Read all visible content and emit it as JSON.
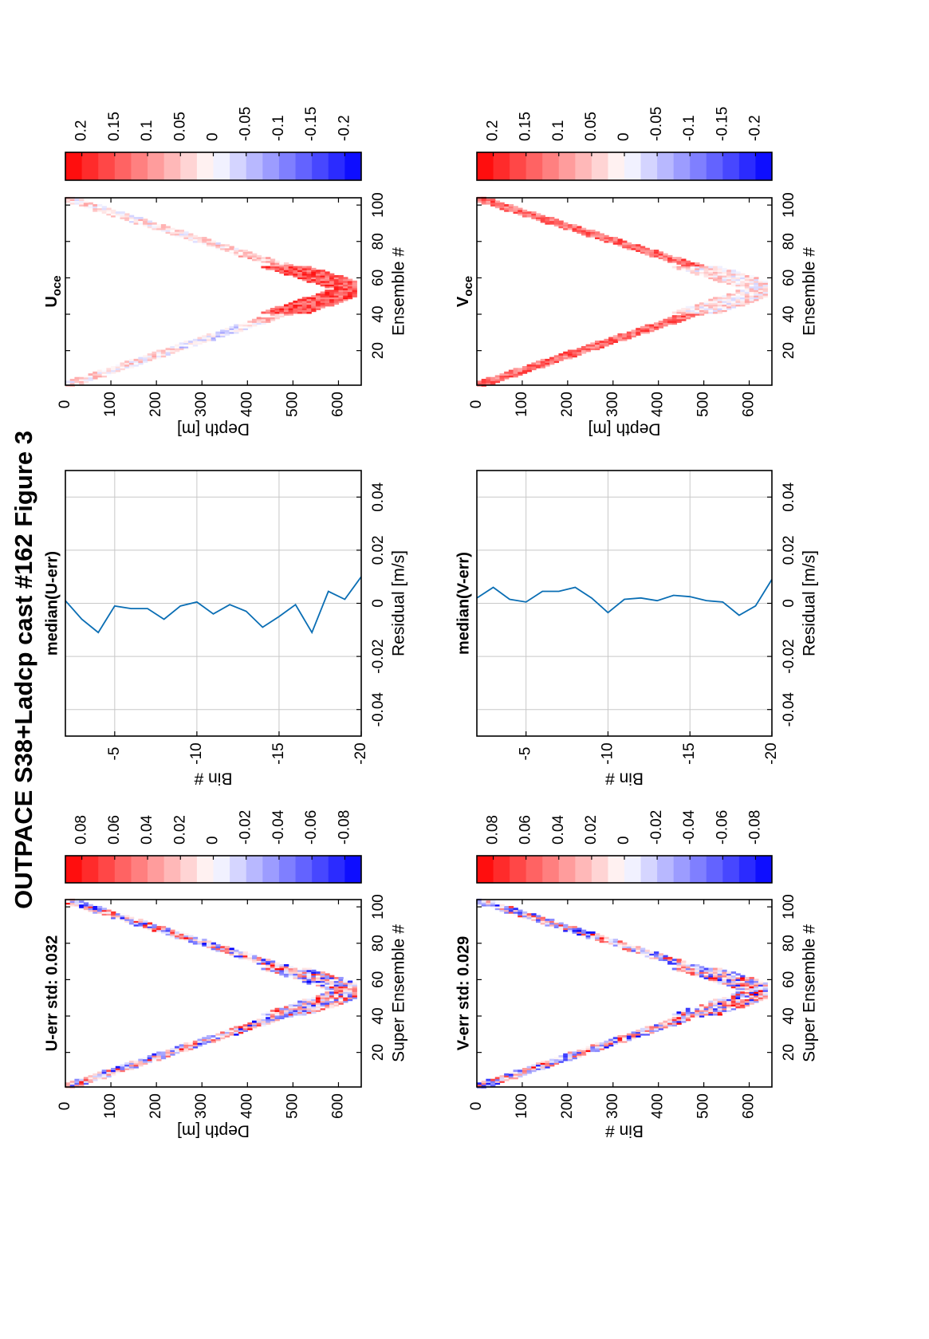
{
  "page_title": "OUTPACE S38+Ladcp cast #162  Figure 3",
  "colors": {
    "line": "#0a6eb4",
    "pos": "#ff0000",
    "neg": "#0000ff"
  },
  "chart_data": [
    {
      "id": "u_err",
      "type": "heatmap",
      "title": "U-err std: 0.032",
      "xlabel": "Super Ensemble #",
      "ylabel": "Depth [m]",
      "xlim": [
        1,
        104
      ],
      "ylim": [
        0,
        650
      ],
      "xticks": [
        "20",
        "40",
        "60",
        "80",
        "100"
      ],
      "yticks": [
        "0",
        "100",
        "200",
        "300",
        "400",
        "500",
        "600"
      ],
      "profile": {
        "n_ensembles": 104,
        "max_depth": 640,
        "bottom_ensemble": 54,
        "band_width_m": 40
      },
      "colorbar": {
        "range": [
          -0.09,
          0.09
        ],
        "ticks": [
          "0.08",
          "0.06",
          "0.04",
          "0.02",
          "0",
          "-0.02",
          "-0.04",
          "-0.06",
          "-0.08"
        ]
      }
    },
    {
      "id": "median_u_err",
      "type": "line",
      "title": "median(U-err)",
      "xlabel": "Residual [m/s]",
      "ylabel": "Bin #",
      "xlim": [
        -0.05,
        0.05
      ],
      "ylim": [
        -20,
        -2
      ],
      "xticks": [
        "-0.04",
        "-0.02",
        "0",
        "0.02",
        "0.04"
      ],
      "yticks": [
        "-5",
        "-10",
        "-15",
        "-20"
      ],
      "x": [
        -2,
        -3,
        -4,
        -5,
        -6,
        -7,
        -8,
        -9,
        -10,
        -11,
        -12,
        -13,
        -14,
        -15,
        -16,
        -17,
        -18,
        -19,
        -20
      ],
      "y": [
        0.001,
        -0.006,
        -0.011,
        -0.001,
        -0.002,
        -0.002,
        -0.006,
        -0.001,
        0.0005,
        -0.004,
        -0.0005,
        -0.003,
        -0.009,
        -0.005,
        -0.0005,
        -0.011,
        0.0045,
        0.0015,
        0.01
      ]
    },
    {
      "id": "u_oce",
      "type": "heatmap",
      "title": "U",
      "title_sub": "oce",
      "xlabel": "Ensemble #",
      "ylabel": "Depth [m]",
      "xlim": [
        1,
        104
      ],
      "ylim": [
        0,
        650
      ],
      "xticks": [
        "20",
        "40",
        "60",
        "80",
        "100"
      ],
      "yticks": [
        "0",
        "100",
        "200",
        "300",
        "400",
        "500",
        "600"
      ],
      "profile": {
        "n_ensembles": 104,
        "max_depth": 640,
        "bottom_ensemble": 54,
        "band_width_m": 40
      },
      "colorbar": {
        "range": [
          -0.225,
          0.225
        ],
        "ticks": [
          "0.2",
          "0.15",
          "0.1",
          "0.05",
          "0",
          "-0.05",
          "-0.1",
          "-0.15",
          "-0.2"
        ]
      }
    },
    {
      "id": "v_err",
      "type": "heatmap",
      "title": "V-err std: 0.029",
      "xlabel": "Super Ensemble #",
      "ylabel": "Bin #",
      "xlim": [
        1,
        104
      ],
      "ylim": [
        0,
        650
      ],
      "xticks": [
        "20",
        "40",
        "60",
        "80",
        "100"
      ],
      "yticks": [
        "0",
        "100",
        "200",
        "300",
        "400",
        "500",
        "600"
      ],
      "profile": {
        "n_ensembles": 104,
        "max_depth": 640,
        "bottom_ensemble": 54,
        "band_width_m": 40
      },
      "colorbar": {
        "range": [
          -0.09,
          0.09
        ],
        "ticks": [
          "0.08",
          "0.06",
          "0.04",
          "0.02",
          "0",
          "-0.02",
          "-0.04",
          "-0.06",
          "-0.08"
        ]
      }
    },
    {
      "id": "median_v_err",
      "type": "line",
      "title": "median(V-err)",
      "xlabel": "Residual [m/s]",
      "ylabel": "Bin #",
      "xlim": [
        -0.05,
        0.05
      ],
      "ylim": [
        -20,
        -2
      ],
      "xticks": [
        "-0.04",
        "-0.02",
        "0",
        "0.02",
        "0.04"
      ],
      "yticks": [
        "-5",
        "-10",
        "-15",
        "-20"
      ],
      "x": [
        -2,
        -3,
        -4,
        -5,
        -6,
        -7,
        -8,
        -9,
        -10,
        -11,
        -12,
        -13,
        -14,
        -15,
        -16,
        -17,
        -18,
        -19,
        -20
      ],
      "y": [
        0.002,
        0.006,
        0.0015,
        0.0005,
        0.0045,
        0.0045,
        0.006,
        0.002,
        -0.0035,
        0.0015,
        0.002,
        0.001,
        0.003,
        0.0025,
        0.001,
        0.0005,
        -0.0045,
        -0.001,
        0.009
      ]
    },
    {
      "id": "v_oce",
      "type": "heatmap",
      "title": "V",
      "title_sub": "oce",
      "xlabel": "Ensemble #",
      "ylabel": "Depth [m]",
      "xlim": [
        1,
        104
      ],
      "ylim": [
        0,
        650
      ],
      "xticks": [
        "20",
        "40",
        "60",
        "80",
        "100"
      ],
      "yticks": [
        "0",
        "100",
        "200",
        "300",
        "400",
        "500",
        "600"
      ],
      "profile": {
        "n_ensembles": 104,
        "max_depth": 640,
        "bottom_ensemble": 54,
        "band_width_m": 40
      },
      "colorbar": {
        "range": [
          -0.225,
          0.225
        ],
        "ticks": [
          "0.2",
          "0.15",
          "0.1",
          "0.05",
          "0",
          "-0.05",
          "-0.1",
          "-0.15",
          "-0.2"
        ]
      }
    }
  ]
}
